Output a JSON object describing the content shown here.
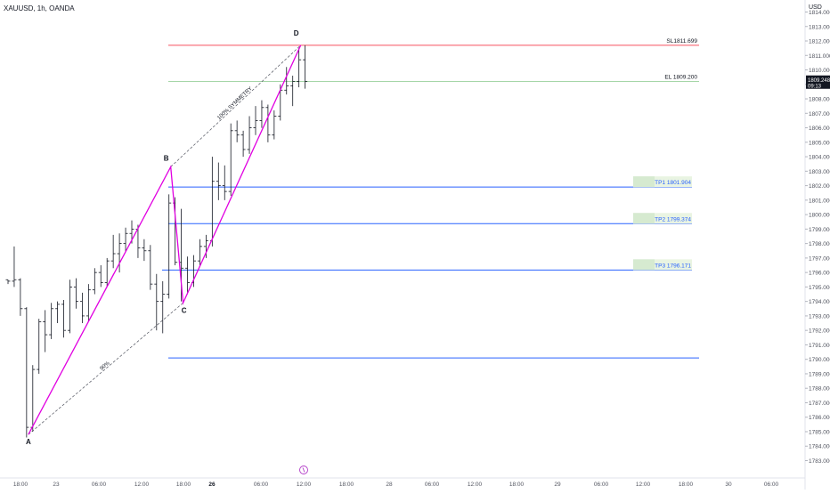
{
  "header": {
    "symbol": "XAUUSD, 1h, OANDA",
    "currency": "USD"
  },
  "chart_data": {
    "type": "candlestick",
    "title": "",
    "ylim": [
      1782.0,
      1815.0
    ],
    "y_ticks": [
      "1783.000",
      "1784.000",
      "1785.000",
      "1786.000",
      "1787.000",
      "1788.000",
      "1789.000",
      "1790.000",
      "1791.000",
      "1792.000",
      "1793.000",
      "1794.000",
      "1795.000",
      "1796.000",
      "1797.000",
      "1798.000",
      "1799.000",
      "1800.000",
      "1801.000",
      "1802.000",
      "1803.000",
      "1804.000",
      "1805.000",
      "1806.000",
      "1807.000",
      "1808.000",
      "1809.000",
      "1810.000",
      "1811.000",
      "1812.000",
      "1813.000",
      "1814.000"
    ],
    "x_tick_labels": [
      "18:00",
      "23",
      "06:00",
      "12:00",
      "18:00",
      "26",
      "06:00",
      "12:00",
      "18:00",
      "28",
      "06:00",
      "12:00",
      "18:00",
      "29",
      "06:00",
      "12:00",
      "18:00",
      "30",
      "06:00"
    ],
    "bold_x_ticks": [
      "26"
    ],
    "current_price": "1809.248",
    "countdown": "09:13",
    "colors": {
      "pattern": "#e100e1",
      "stop_loss": "#f7525f",
      "entry": "#a5d6a7",
      "target": "#2962ff",
      "bars": "#131722",
      "label_bg": "#e9f4e2",
      "price_tag": "#131722"
    },
    "pattern_points": [
      {
        "label": "A",
        "time": "21 18:00",
        "price": 1784.8
      },
      {
        "label": "B",
        "time": "25 12:00",
        "price": 1803.3
      },
      {
        "label": "C",
        "time": "25 18:00",
        "price": 1793.9
      },
      {
        "label": "D",
        "time": "26 12:00",
        "price": 1811.7
      }
    ],
    "pattern_labels": {
      "ac": "90%",
      "bd": "100% SYMMETRY"
    },
    "levels": [
      {
        "name": "SL",
        "label": "SL1811.699",
        "price": 1811.699,
        "role": "stop_loss"
      },
      {
        "name": "EL",
        "label": "EL 1809.200",
        "price": 1809.2,
        "role": "entry"
      },
      {
        "name": "TP1",
        "label": "TP1 1801.904",
        "price": 1801.904,
        "role": "target"
      },
      {
        "name": "TP2",
        "label": "TP2 1799.374",
        "price": 1799.374,
        "role": "target"
      },
      {
        "name": "TP3",
        "label": "TP3 1796.171",
        "price": 1796.171,
        "role": "target"
      },
      {
        "name": "level",
        "label": "",
        "price": 1790.1,
        "role": "target"
      }
    ],
    "bars": [
      [
        1795.5,
        1795.5,
        1795.2,
        1795.4
      ],
      [
        1795.4,
        1797.8,
        1795.0,
        1795.5
      ],
      [
        1795.5,
        1795.6,
        1793.0,
        1793.5
      ],
      [
        1793.5,
        1793.6,
        1784.6,
        1785.3
      ],
      [
        1785.3,
        1789.6,
        1785.0,
        1789.3
      ],
      [
        1789.3,
        1792.8,
        1789.0,
        1792.6
      ],
      [
        1792.6,
        1793.4,
        1790.5,
        1791.7
      ],
      [
        1791.7,
        1793.9,
        1791.4,
        1793.5
      ],
      [
        1793.5,
        1794.0,
        1792.5,
        1793.8
      ],
      [
        1793.8,
        1794.1,
        1791.5,
        1792.0
      ],
      [
        1792.0,
        1795.5,
        1791.8,
        1795.0
      ],
      [
        1795.0,
        1795.6,
        1793.5,
        1794.0
      ],
      [
        1794.0,
        1794.6,
        1792.5,
        1793.0
      ],
      [
        1793.0,
        1795.2,
        1792.6,
        1794.8
      ],
      [
        1794.8,
        1796.3,
        1794.5,
        1796.0
      ],
      [
        1796.0,
        1796.5,
        1795.0,
        1795.3
      ],
      [
        1795.3,
        1797.0,
        1795.0,
        1796.8
      ],
      [
        1796.8,
        1798.6,
        1796.3,
        1797.3
      ],
      [
        1797.3,
        1798.7,
        1796.0,
        1798.0
      ],
      [
        1798.0,
        1799.1,
        1797.4,
        1798.7
      ],
      [
        1798.7,
        1799.6,
        1798.0,
        1799.0
      ],
      [
        1799.0,
        1799.3,
        1797.0,
        1797.7
      ],
      [
        1797.7,
        1798.3,
        1796.8,
        1797.5
      ],
      [
        1797.5,
        1797.9,
        1794.8,
        1795.2
      ],
      [
        1795.2,
        1795.9,
        1792.0,
        1794.0
      ],
      [
        1794.0,
        1795.4,
        1791.8,
        1794.5
      ],
      [
        1794.5,
        1801.4,
        1794.2,
        1800.8
      ],
      [
        1800.8,
        1801.2,
        1796.5,
        1796.7
      ],
      [
        1796.7,
        1800.4,
        1794.0,
        1796.3
      ],
      [
        1796.3,
        1797.1,
        1794.5,
        1795.3
      ],
      [
        1795.3,
        1797.2,
        1795.0,
        1796.8
      ],
      [
        1796.8,
        1798.3,
        1796.5,
        1797.8
      ],
      [
        1797.8,
        1798.6,
        1797.0,
        1798.2
      ],
      [
        1798.2,
        1804.0,
        1797.8,
        1802.3
      ],
      [
        1802.3,
        1803.6,
        1801.0,
        1802.0
      ],
      [
        1802.0,
        1803.4,
        1801.0,
        1801.6
      ],
      [
        1801.6,
        1806.3,
        1801.3,
        1805.8
      ],
      [
        1805.8,
        1806.5,
        1805.0,
        1805.5
      ],
      [
        1805.5,
        1805.8,
        1804.0,
        1804.5
      ],
      [
        1804.5,
        1806.8,
        1804.2,
        1806.0
      ],
      [
        1806.0,
        1807.5,
        1805.5,
        1806.5
      ],
      [
        1806.5,
        1807.9,
        1806.0,
        1807.4
      ],
      [
        1807.4,
        1807.6,
        1805.0,
        1805.5
      ],
      [
        1805.5,
        1807.2,
        1805.2,
        1806.8
      ],
      [
        1806.8,
        1809.0,
        1806.5,
        1808.6
      ],
      [
        1808.6,
        1810.2,
        1808.3,
        1808.9
      ],
      [
        1808.9,
        1809.6,
        1807.5,
        1809.2
      ],
      [
        1809.2,
        1811.5,
        1808.8,
        1810.7
      ],
      [
        1810.7,
        1811.7,
        1808.7,
        1809.2
      ]
    ]
  }
}
